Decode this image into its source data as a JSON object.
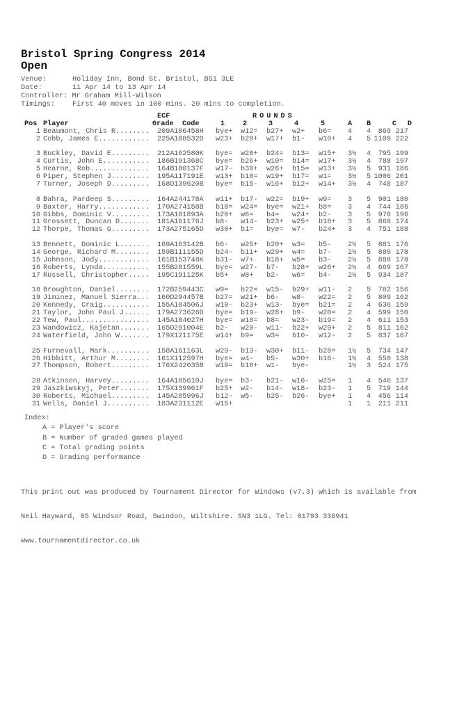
{
  "header": {
    "title": "Bristol Spring Congress 2014",
    "subtitle": "Open",
    "venue_label": "Venue:",
    "venue": "Holiday Inn, Bond St. Bristol, BS1 3LE",
    "date_label": "Date:",
    "date": "11 Apr 14 to 13 Apr 14",
    "controller_label": "Controller:",
    "controller": "Mr Graham Mill-Wilson",
    "timings_label": "Timings:",
    "timings": "First 40 moves in 100 mins. 20 mins to completion."
  },
  "table": {
    "headers": {
      "ecf": "ECF",
      "rounds": "ROUNDS",
      "pos": "Pos",
      "player": "Player",
      "grade": "Grade",
      "code": "Code",
      "r1": "1",
      "r2": "2",
      "r3": "3",
      "r4": "4",
      "r5": "5",
      "a": "A",
      "b": "B",
      "c": "C",
      "d": "D"
    },
    "groups": [
      [
        [
          "1",
          "Beaumont, Chris R........",
          "209A",
          "106458H",
          "bye+",
          "w12=",
          "b27+",
          "w2+",
          "b6=",
          "4",
          "4",
          "869",
          "217"
        ],
        [
          "2",
          "Cobb, James E............",
          "225A",
          "108532D",
          "w23+",
          "b29+",
          "w17+",
          "b1-",
          "w10+",
          "4",
          "5",
          "1109",
          "222"
        ]
      ],
      [
        [
          "3",
          "Buckley, David E.........",
          "212A",
          "162580K",
          "bye=",
          "w28+",
          "b24=",
          "b13=",
          "w15+",
          "3½",
          "4",
          "795",
          "199"
        ],
        [
          "4",
          "Curtis, John E...........",
          "186B",
          "191368C",
          "bye=",
          "b26+",
          "w10=",
          "b14=",
          "w17+",
          "3½",
          "4",
          "788",
          "197"
        ],
        [
          "5",
          "Hearne, Rob..............",
          "164B",
          "180137F",
          "w17-",
          "b30+",
          "w26+",
          "b15=",
          "w13+",
          "3½",
          "5",
          "931",
          "186"
        ],
        [
          "6",
          "Piper, Stephen J.........",
          "195A",
          "117191E",
          "w13+",
          "b10=",
          "w19+",
          "b17=",
          "w1=",
          "3½",
          "5",
          "1006",
          "201"
        ],
        [
          "7",
          "Turner, Joseph D.........",
          "168D",
          "139620B",
          "bye=",
          "b15-",
          "w16+",
          "b12+",
          "w14+",
          "3½",
          "4",
          "748",
          "187"
        ]
      ],
      [
        [
          "8",
          "Bahra, Pardeep S.........",
          "164A",
          "244178A",
          "w11+",
          "b17-",
          "w22=",
          "b19+",
          "w9=",
          "3",
          "5",
          "901",
          "180"
        ],
        [
          "9",
          "Baxter, Harry............",
          "170A",
          "274158B",
          "b18=",
          "w24=",
          "bye=",
          "w21+",
          "b8=",
          "3",
          "4",
          "744",
          "186"
        ],
        [
          "10",
          "Gibbs, Dominic V.........",
          "173A",
          "101893A",
          "b20+",
          "w6=",
          "b4=",
          "w24+",
          "b2-",
          "3",
          "5",
          "978",
          "196"
        ],
        [
          "11",
          "Grossett, Duncan D.......",
          "181A",
          "161176J",
          "b8-",
          "w14-",
          "b23+",
          "w25+",
          "b18+",
          "3",
          "5",
          "868",
          "174"
        ],
        [
          "12",
          "Thorpe, Thomas G.........",
          "173A",
          "275165D",
          "w30+",
          "b1=",
          "bye=",
          "w7-",
          "b24+",
          "3",
          "4",
          "751",
          "188"
        ]
      ],
      [
        [
          "13",
          "Bennett, Dominic L.......",
          "169A",
          "163142B",
          "b6-",
          "w25+",
          "b20+",
          "w3=",
          "b5-",
          "2½",
          "5",
          "881",
          "176"
        ],
        [
          "14",
          "George, Richard M........",
          "159B",
          "111155D",
          "b24-",
          "b11+",
          "w29+",
          "w4=",
          "b7-",
          "2½",
          "5",
          "889",
          "178"
        ],
        [
          "15",
          "Johnson, Jody............",
          "161B",
          "153748K",
          "b31-",
          "w7+",
          "b18+",
          "w5=",
          "b3-",
          "2½",
          "5",
          "888",
          "178"
        ],
        [
          "16",
          "Roberts, Lynda...........",
          "155B",
          "281559L",
          "bye=",
          "w27-",
          "b7-",
          "b28+",
          "w26+",
          "2½",
          "4",
          "669",
          "167"
        ],
        [
          "17",
          "Russell, Christopher.....",
          "195C",
          "191125K",
          "b5+",
          "w8+",
          "b2-",
          "w6=",
          "b4-",
          "2½",
          "5",
          "934",
          "187"
        ]
      ],
      [
        [
          "18",
          "Broughton, Daniel........",
          "172B",
          "259443C",
          "w9=",
          "b22=",
          "w15-",
          "b29+",
          "w11-",
          "2",
          "5",
          "782",
          "156"
        ],
        [
          "19",
          "Jiminez, Manuel Sierra...",
          "160D",
          "294457B",
          "b27=",
          "w21+",
          "b6-",
          "w8-",
          "w22=",
          "2",
          "5",
          "809",
          "162"
        ],
        [
          "20",
          "Kennedy, Craig...........",
          "155A",
          "184506J",
          "w10-",
          "b23+",
          "w13-",
          "bye=",
          "b21=",
          "2",
          "4",
          "636",
          "159"
        ],
        [
          "21",
          "Taylor, John Paul J......",
          "179A",
          "273626D",
          "bye=",
          "b19-",
          "w28+",
          "b9-",
          "w20=",
          "2",
          "4",
          "599",
          "150"
        ],
        [
          "22",
          "Tew, Paul................",
          "145A",
          "184027H",
          "bye=",
          "w18=",
          "b8=",
          "w23-",
          "b19=",
          "2",
          "4",
          "611",
          "153"
        ],
        [
          "23",
          "Wandowicz, Kajetan.......",
          "165D",
          "291004E",
          "b2-",
          "w20-",
          "w11-",
          "b22+",
          "w29+",
          "2",
          "5",
          "811",
          "162"
        ],
        [
          "24",
          "Waterfield, John W.......",
          "179X",
          "121175E",
          "w14+",
          "b9=",
          "w3=",
          "b10-",
          "w12-",
          "2",
          "5",
          "837",
          "167"
        ]
      ],
      [
        [
          "25",
          "Furnevall, Mark..........",
          "158A",
          "161163L",
          "w29-",
          "b13-",
          "w30+",
          "b11-",
          "b28=",
          "1½",
          "5",
          "734",
          "147"
        ],
        [
          "26",
          "Hibbitt, Arthur M........",
          "161X",
          "112597H",
          "bye=",
          "w4-",
          "b5-",
          "w30+",
          "b16-",
          "1½",
          "4",
          "550",
          "138"
        ],
        [
          "27",
          "Thompson, Robert.........",
          "176X",
          "242035B",
          "w19=",
          "b16+",
          "w1-",
          "bye-",
          "",
          "1½",
          "3",
          "524",
          "175"
        ]
      ],
      [
        [
          "28",
          "Atkinson, Harvey.........",
          "164A",
          "185610J",
          "bye=",
          "b3-",
          "b21-",
          "w16-",
          "w25=",
          "1",
          "4",
          "546",
          "137"
        ],
        [
          "29",
          "Jaszkiwskyj, Peter.......",
          "175X",
          "139961F",
          "b25+",
          "w2-",
          "b14-",
          "w18-",
          "b23-",
          "1",
          "5",
          "719",
          "144"
        ],
        [
          "30",
          "Roberts, Michael.........",
          "145A",
          "285996J",
          "b12-",
          "w5-",
          "b25-",
          "b26-",
          "bye+",
          "1",
          "4",
          "456",
          "114"
        ],
        [
          "31",
          "Wells, Daniel J..........",
          "183A",
          "231112E",
          "w15+",
          "",
          "",
          "",
          "",
          "1",
          "1",
          "211",
          "211"
        ]
      ]
    ]
  },
  "index": {
    "label": "Index:",
    "items": [
      "A = Player's score",
      "B = Number of graded games played",
      "C = Total grading points",
      "D = Grading performance"
    ]
  },
  "footer": {
    "lines": [
      "This print out was produced by Tournament Director for Windows (v7.3) which is available from",
      "Neil Hayward, 85 Windsor Road, Swindon, Wiltshire. SN3 1LG. Tel: 01793 336941",
      "www.tournamentdirector.co.uk"
    ]
  }
}
